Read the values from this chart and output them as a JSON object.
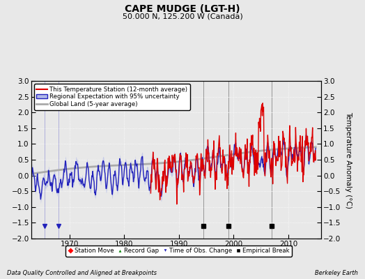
{
  "title": "CAPE MUDGE (LGT-H)",
  "subtitle": "50.000 N, 125.200 W (Canada)",
  "ylabel": "Temperature Anomaly (°C)",
  "footer_left": "Data Quality Controlled and Aligned at Breakpoints",
  "footer_right": "Berkeley Earth",
  "xlim": [
    1963,
    2016
  ],
  "ylim": [
    -2.0,
    3.0
  ],
  "yticks": [
    -2,
    -1.5,
    -1,
    -0.5,
    0,
    0.5,
    1,
    1.5,
    2,
    2.5,
    3
  ],
  "xticks": [
    1970,
    1980,
    1990,
    2000,
    2010
  ],
  "bg_color": "#e8e8e8",
  "plot_bg_color": "#e8e8e8",
  "station_color": "#dd0000",
  "regional_color": "#2222bb",
  "regional_fill_color": "#b0b8e8",
  "global_color": "#aaaaaa",
  "empirical_breaks": [
    1994.5,
    1999.0,
    2007.0
  ],
  "obs_changes": [
    1965.5,
    1968.0
  ],
  "legend_labels": [
    "This Temperature Station (12-month average)",
    "Regional Expectation with 95% uncertainty",
    "Global Land (5-year average)"
  ],
  "legend_marker_labels": [
    "Station Move",
    "Record Gap",
    "Time of Obs. Change",
    "Empirical Break"
  ]
}
